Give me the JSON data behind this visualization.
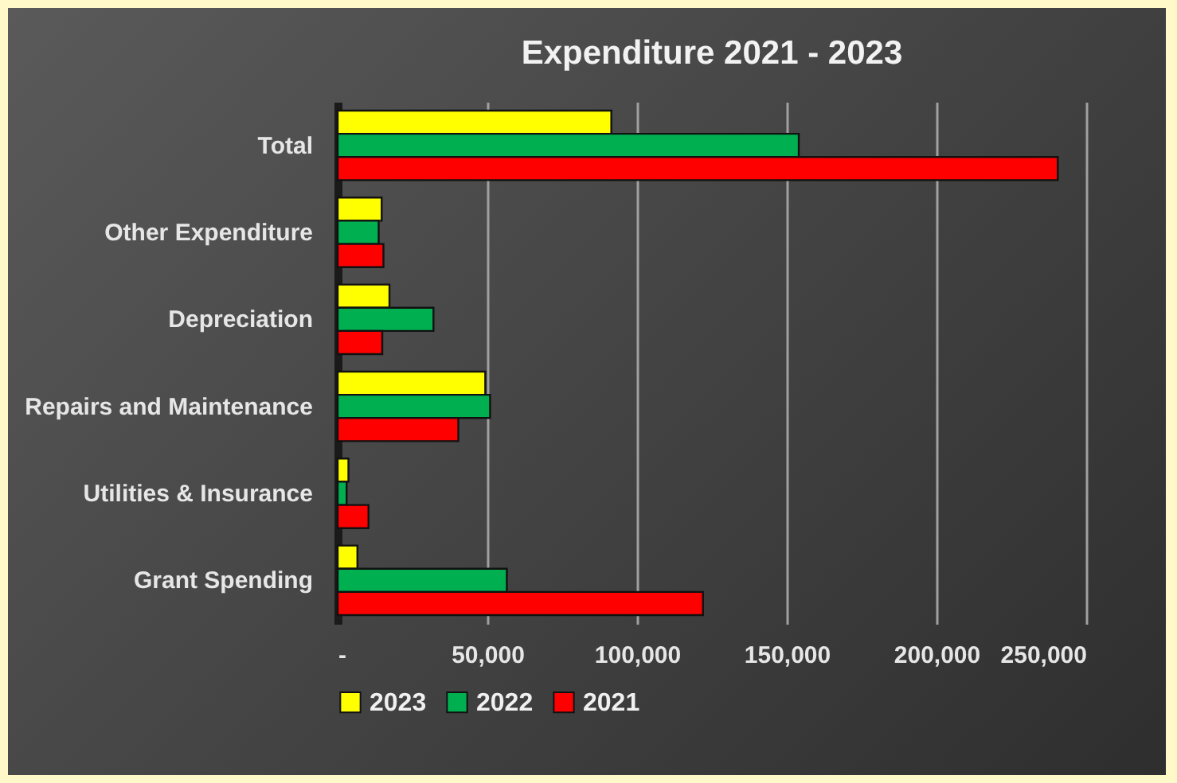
{
  "chart_data": {
    "type": "bar",
    "orientation": "horizontal",
    "title": "Expenditure 2021 - 2023",
    "categories": [
      "Total",
      "Other Expenditure",
      "Depreciation",
      "Repairs and Maintenance",
      "Utilities & Insurance",
      "Grant Spending"
    ],
    "series": [
      {
        "name": "2023",
        "color": "#ffff00",
        "values": [
          91400,
          14700,
          17300,
          49300,
          3600,
          6600
        ]
      },
      {
        "name": "2022",
        "color": "#00b050",
        "values": [
          154000,
          13700,
          32000,
          50900,
          3000,
          56500
        ]
      },
      {
        "name": "2021",
        "color": "#ff0000",
        "values": [
          240500,
          15300,
          14900,
          40300,
          10300,
          122000
        ]
      }
    ],
    "xlim": [
      0,
      250000
    ],
    "xticks": [
      {
        "value": 0,
        "label": "-"
      },
      {
        "value": 50000,
        "label": "50,000"
      },
      {
        "value": 100000,
        "label": "100,000"
      },
      {
        "value": 150000,
        "label": "150,000"
      },
      {
        "value": 200000,
        "label": "200,000"
      },
      {
        "value": 250000,
        "label": "250,000"
      }
    ],
    "grid": "x",
    "legend": "bottom"
  }
}
